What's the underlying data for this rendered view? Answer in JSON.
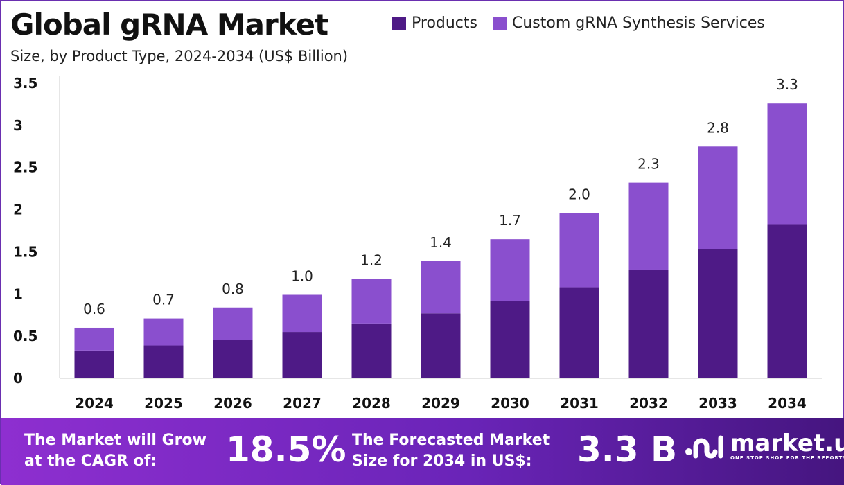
{
  "chart_data": {
    "type": "bar",
    "stacked": true,
    "title": "Global gRNA Market",
    "subtitle": "Size, by Product Type, 2024-2034 (US$ Billion)",
    "categories": [
      "2024",
      "2025",
      "2026",
      "2027",
      "2028",
      "2029",
      "2030",
      "2031",
      "2032",
      "2033",
      "2034"
    ],
    "series": [
      {
        "name": "Products",
        "color": "#4e1a86",
        "values": [
          0.33,
          0.39,
          0.46,
          0.55,
          0.65,
          0.77,
          0.92,
          1.08,
          1.29,
          1.53,
          1.82
        ]
      },
      {
        "name": "Custom gRNA Synthesis Services",
        "color": "#8a4fce",
        "values": [
          0.27,
          0.32,
          0.38,
          0.44,
          0.53,
          0.62,
          0.73,
          0.88,
          1.03,
          1.22,
          1.44
        ]
      }
    ],
    "totals": [
      "0.6",
      "0.7",
      "0.8",
      "1.0",
      "1.2",
      "1.4",
      "1.7",
      "2.0",
      "2.3",
      "2.8",
      "3.3"
    ],
    "ylim": [
      0,
      3.5
    ],
    "yticks": [
      "0",
      "0.5",
      "1",
      "1.5",
      "2",
      "2.5",
      "3",
      "3.5"
    ],
    "grid": false,
    "legend": "top-right"
  },
  "footer": {
    "cagr_label_1": "The Market will Grow",
    "cagr_label_2": "at the CAGR of:",
    "cagr_value": "18.5%",
    "forecast_label_1": "The Forecasted Market",
    "forecast_label_2": "Size for 2034 in US$:",
    "forecast_value": "3.3 B",
    "logo_name": "market.us",
    "logo_tagline": "ONE STOP SHOP FOR THE REPORTS"
  }
}
